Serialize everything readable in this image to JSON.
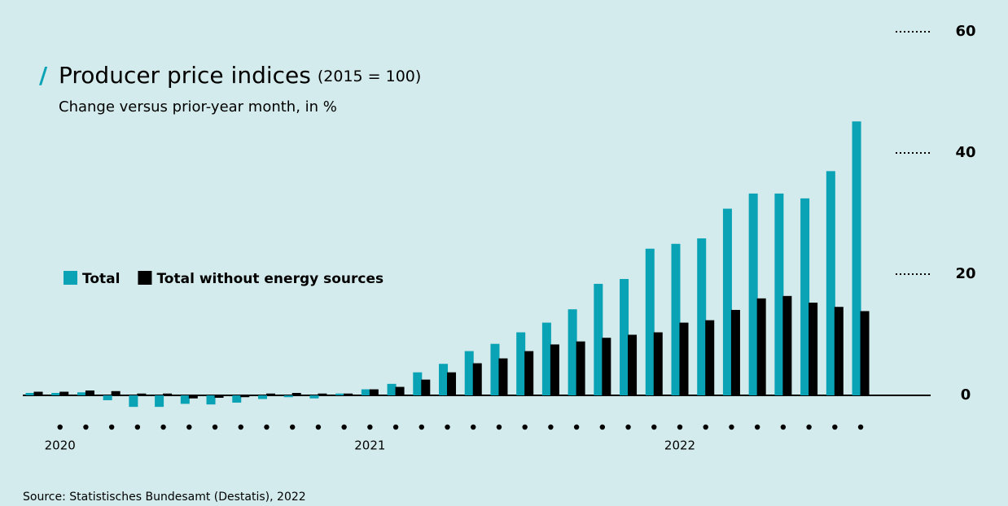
{
  "chart_data": {
    "type": "bar",
    "title": "Producer price indices",
    "title_note": "(2015 = 100)",
    "subtitle": "Change versus prior-year month, in %",
    "source": "Source: Statistisches Bundesamt (Destatis), 2022",
    "categories": [
      null,
      "2020",
      null,
      null,
      null,
      null,
      null,
      null,
      null,
      null,
      null,
      null,
      null,
      "2021",
      null,
      null,
      null,
      null,
      null,
      null,
      null,
      null,
      null,
      null,
      null,
      "2022",
      null,
      null,
      null,
      null,
      null,
      null,
      null
    ],
    "series": [
      {
        "name": "Total",
        "color": "#0aa2b5",
        "values": [
          0.4,
          0.4,
          0.5,
          -0.8,
          -1.9,
          -1.9,
          -1.4,
          -1.5,
          -1.2,
          -0.6,
          -0.3,
          -0.5,
          0.3,
          1.0,
          1.9,
          3.8,
          5.2,
          7.3,
          8.5,
          10.4,
          12.0,
          14.2,
          18.4,
          19.2,
          24.2,
          25.0,
          25.9,
          30.8,
          33.3,
          33.3,
          32.5,
          37.0,
          45.2
        ]
      },
      {
        "name": "Total without energy sources",
        "color": "#000000",
        "values": [
          0.6,
          0.6,
          0.8,
          0.7,
          0.3,
          0.3,
          -0.5,
          -0.4,
          -0.3,
          0.3,
          0.4,
          0.3,
          0.3,
          1.0,
          1.4,
          2.6,
          3.8,
          5.3,
          6.1,
          7.3,
          8.4,
          8.9,
          9.5,
          10.0,
          10.4,
          12.0,
          12.4,
          14.1,
          16.0,
          16.4,
          15.3,
          14.6,
          13.9
        ]
      }
    ],
    "ylim": [
      0,
      60
    ],
    "yticks": [
      0,
      20,
      40,
      60
    ]
  }
}
